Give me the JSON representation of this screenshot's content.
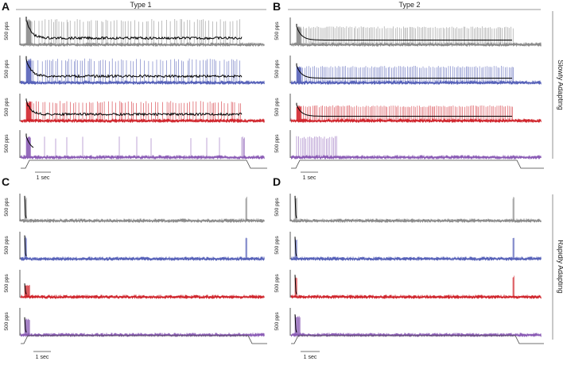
{
  "column_titles": {
    "type1": "Type 1",
    "type2": "Type 2"
  },
  "row_titles": {
    "slow": "Slowly Adapting",
    "rapid": "Rapidly Adapting"
  },
  "panel_labels": {
    "A": "A",
    "B": "B",
    "C": "C",
    "D": "D"
  },
  "rate_axis_label": "500 pps",
  "scale_bar_label": "1 sec",
  "colors": {
    "gray": "#8a8a8a",
    "blue": "#5560b8",
    "red": "#d0252c",
    "purple": "#8a5bb5",
    "black": "#000000"
  },
  "traces": {
    "A": [
      {
        "color": "gray",
        "pattern": "sa1",
        "spike_height": 0.9,
        "black_curve": true
      },
      {
        "color": "blue",
        "pattern": "sa1",
        "spike_height": 0.85,
        "black_curve": true
      },
      {
        "color": "red",
        "pattern": "sa1",
        "spike_height": 0.7,
        "black_curve": true
      },
      {
        "color": "purple",
        "pattern": "sa1-sparse",
        "spike_height": 0.75,
        "black_curve": true
      }
    ],
    "B": [
      {
        "color": "gray",
        "pattern": "sa2",
        "spike_height": 0.65,
        "black_curve": true
      },
      {
        "color": "blue",
        "pattern": "sa2",
        "spike_height": 0.6,
        "black_curve": true
      },
      {
        "color": "red",
        "pattern": "sa2",
        "spike_height": 0.55,
        "black_curve": true
      },
      {
        "color": "purple",
        "pattern": "sa2-short",
        "spike_height": 0.75,
        "black_curve": false
      }
    ],
    "C": [
      {
        "color": "gray",
        "pattern": "ra",
        "spike_height": 0.85,
        "black_curve": true
      },
      {
        "color": "blue",
        "pattern": "ra",
        "spike_height": 0.8,
        "black_curve": true
      },
      {
        "color": "red",
        "pattern": "ra-on",
        "spike_height": 0.45,
        "black_curve": true
      },
      {
        "color": "purple",
        "pattern": "ra-on",
        "spike_height": 0.6,
        "black_curve": true
      }
    ],
    "D": [
      {
        "color": "gray",
        "pattern": "ra",
        "spike_height": 0.85,
        "black_curve": true
      },
      {
        "color": "blue",
        "pattern": "ra",
        "spike_height": 0.75,
        "black_curve": true
      },
      {
        "color": "red",
        "pattern": "ra",
        "spike_height": 0.75,
        "black_curve": true
      },
      {
        "color": "purple",
        "pattern": "ra-on",
        "spike_height": 0.7,
        "black_curve": true
      }
    ]
  }
}
